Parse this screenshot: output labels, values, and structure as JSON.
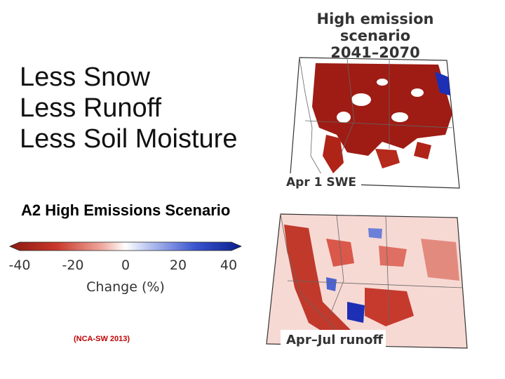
{
  "bullets": [
    "Less Snow",
    "Less Runoff",
    "Less Soil Moisture"
  ],
  "subheading": "A2 High Emissions Scenario",
  "legend": {
    "ticks": [
      "-40",
      "-20",
      "0",
      "20",
      "40"
    ],
    "title": "Change (%)",
    "colors": {
      "low": "#8b1a12",
      "mid": "#ffffff",
      "high": "#0a1e8c"
    }
  },
  "citation": "(NCA-SW 2013)",
  "map_title": {
    "line1": "High emission scenario",
    "line2": "2041–2070"
  },
  "maps": [
    {
      "label": "Apr 1 SWE"
    },
    {
      "label": "Apr–Jul runoff"
    }
  ]
}
